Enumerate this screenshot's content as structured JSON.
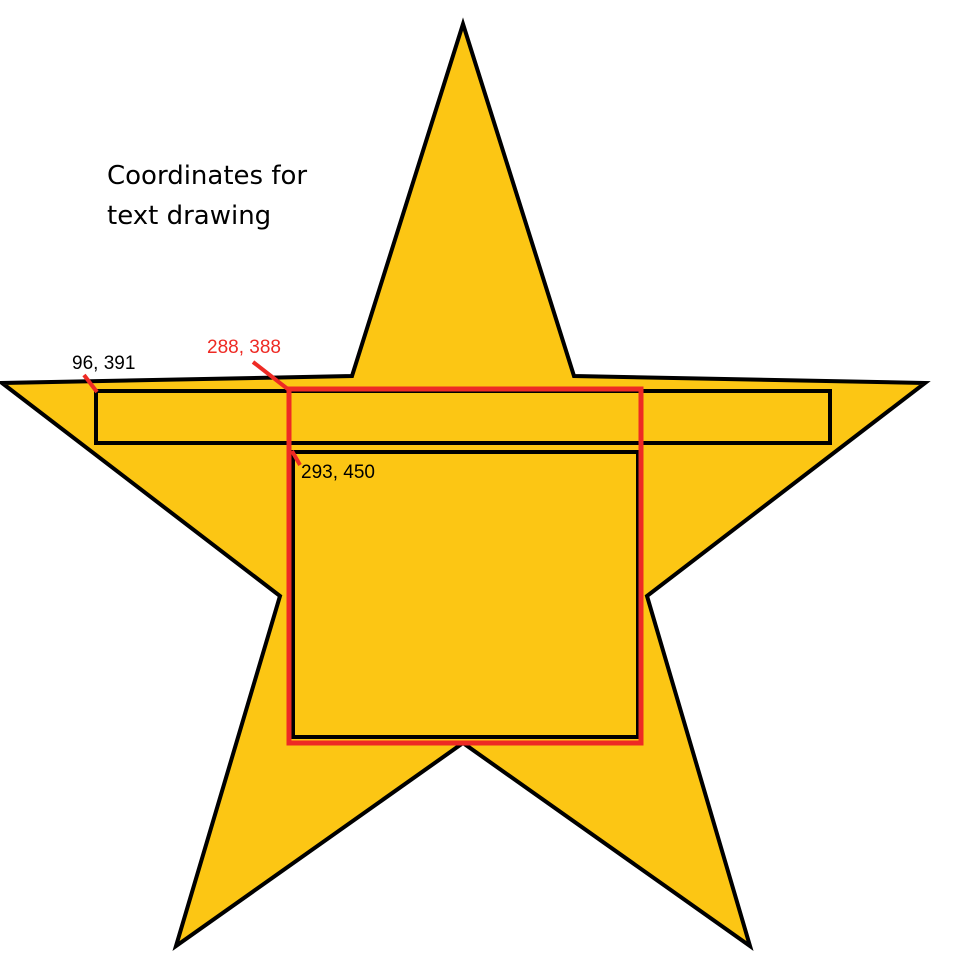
{
  "title": {
    "line1": "Coordinates for",
    "line2": "text drawing"
  },
  "labels": {
    "wide_rect_corner": "96, 391",
    "red_rect_corner": "288, 388",
    "inner_rect_corner": "293, 450"
  },
  "colors": {
    "star_fill": "#fcc614",
    "outline": "#000000",
    "highlight": "#ee2a24",
    "background": "#ffffff"
  }
}
